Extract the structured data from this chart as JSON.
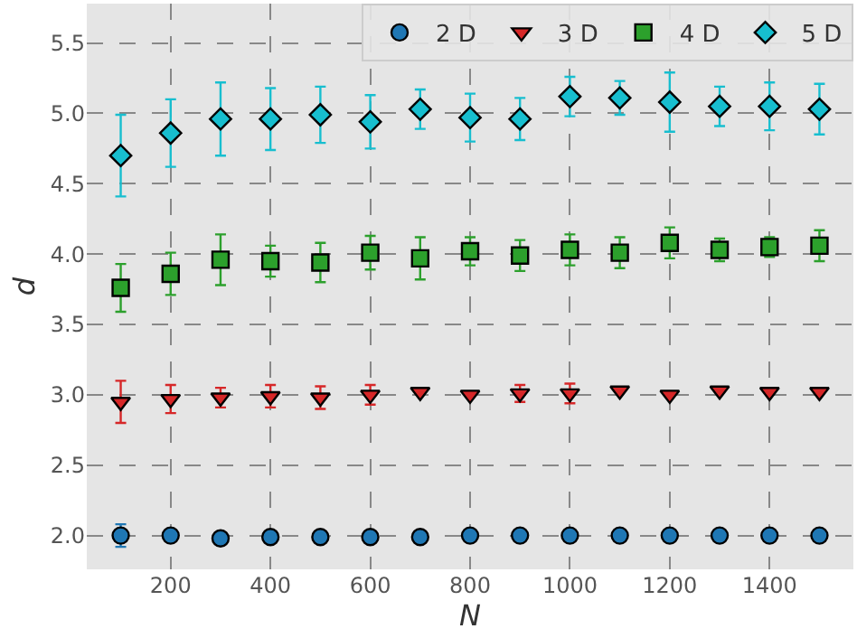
{
  "chart_data": {
    "type": "scatter",
    "xlabel": "N",
    "ylabel": "d",
    "x": [
      100,
      200,
      300,
      400,
      500,
      600,
      700,
      800,
      900,
      1000,
      1100,
      1200,
      1300,
      1400,
      1500
    ],
    "series": [
      {
        "name": "2 D",
        "color": "#1f77b4",
        "marker": "circle",
        "values": [
          2.0,
          2.0,
          1.98,
          1.99,
          1.99,
          1.99,
          1.99,
          2.0,
          2.0,
          2.0,
          2.0,
          2.0,
          2.0,
          2.0,
          2.0
        ],
        "errors": [
          0.08,
          null,
          null,
          null,
          null,
          null,
          null,
          null,
          null,
          null,
          null,
          null,
          null,
          null,
          null
        ]
      },
      {
        "name": "3 D",
        "color": "#d62728",
        "marker": "triangle",
        "values": [
          2.95,
          2.97,
          2.98,
          2.99,
          2.98,
          3.0,
          3.02,
          3.0,
          3.01,
          3.01,
          3.03,
          3.0,
          3.03,
          3.02,
          3.02
        ],
        "errors": [
          0.15,
          0.1,
          0.07,
          0.08,
          0.08,
          0.07,
          null,
          null,
          0.06,
          0.07,
          null,
          null,
          null,
          null,
          null
        ]
      },
      {
        "name": "4 D",
        "color": "#2ca02c",
        "marker": "square",
        "values": [
          3.76,
          3.86,
          3.96,
          3.95,
          3.94,
          4.01,
          3.97,
          4.02,
          3.99,
          4.03,
          4.01,
          4.08,
          4.03,
          4.05,
          4.06
        ],
        "errors": [
          0.17,
          0.15,
          0.18,
          0.11,
          0.14,
          0.12,
          0.15,
          0.1,
          0.11,
          0.11,
          0.11,
          0.11,
          0.08,
          0.07,
          0.11
        ]
      },
      {
        "name": "5 D",
        "color": "#17becf",
        "marker": "diamond",
        "values": [
          4.7,
          4.86,
          4.96,
          4.96,
          4.99,
          4.94,
          5.03,
          4.97,
          4.96,
          5.12,
          5.11,
          5.08,
          5.05,
          5.05,
          5.03
        ],
        "errors": [
          0.29,
          0.24,
          0.26,
          0.22,
          0.2,
          0.19,
          0.14,
          0.17,
          0.15,
          0.14,
          0.12,
          0.21,
          0.14,
          0.17,
          0.18
        ]
      }
    ],
    "xlim": [
      32,
      1568
    ],
    "xticks": [
      200,
      400,
      600,
      800,
      1000,
      1200,
      1400
    ],
    "ylim": [
      1.76,
      5.78
    ],
    "yticks": [
      {
        "value": 2,
        "label": "2.0"
      },
      {
        "value": 2.5,
        "label": "2.5"
      },
      {
        "value": 3,
        "label": "3.0"
      },
      {
        "value": 3.5,
        "label": "3.5"
      },
      {
        "value": 4,
        "label": "4.0"
      },
      {
        "value": 4.5,
        "label": "4.5"
      },
      {
        "value": 5,
        "label": "5.0"
      },
      {
        "value": 5.5,
        "label": "5.5"
      }
    ],
    "grid": true,
    "legend": "top right"
  }
}
